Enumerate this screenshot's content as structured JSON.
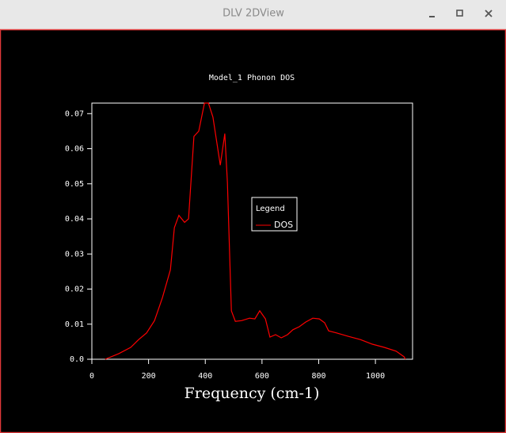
{
  "window": {
    "title": "DLV 2DView"
  },
  "chart_data": {
    "type": "line",
    "title": "Model_1 Phonon DOS",
    "x_label": "Frequency (cm-1)",
    "legend_title": "Legend",
    "x": [
      47,
      95,
      137,
      165,
      193,
      221,
      249,
      277,
      291,
      307,
      327,
      341,
      360,
      377,
      397,
      411,
      427,
      453,
      469,
      478,
      492,
      506,
      528,
      556,
      575,
      592,
      612,
      628,
      648,
      668,
      690,
      709,
      732,
      754,
      779,
      802,
      821,
      835,
      863,
      905,
      947,
      989,
      1031,
      1073,
      1101,
      1106
    ],
    "series": [
      {
        "name": "DOS",
        "color": "#ff0000",
        "values": [
          0,
          0.0016,
          0.0034,
          0.0056,
          0.0075,
          0.011,
          0.0176,
          0.0255,
          0.0375,
          0.041,
          0.039,
          0.04,
          0.0635,
          0.065,
          0.073,
          0.073,
          0.069,
          0.0553,
          0.0643,
          0.0503,
          0.0138,
          0.0108,
          0.011,
          0.0117,
          0.0115,
          0.0138,
          0.0115,
          0.0063,
          0.007,
          0.0061,
          0.007,
          0.0084,
          0.0093,
          0.0106,
          0.0117,
          0.0115,
          0.0104,
          0.0081,
          0.0075,
          0.0065,
          0.0056,
          0.0043,
          0.0034,
          0.0023,
          0.0007,
          0
        ]
      }
    ],
    "xlim": [
      0,
      1131
    ],
    "xticks": [
      0,
      200,
      400,
      600,
      800,
      1000
    ],
    "ylim": [
      0,
      0.073
    ],
    "yticks": [
      {
        "value": 0,
        "label": "0.0"
      },
      0.01,
      0.02,
      0.03,
      0.04,
      0.05,
      0.06,
      0.07
    ],
    "grid": false
  }
}
